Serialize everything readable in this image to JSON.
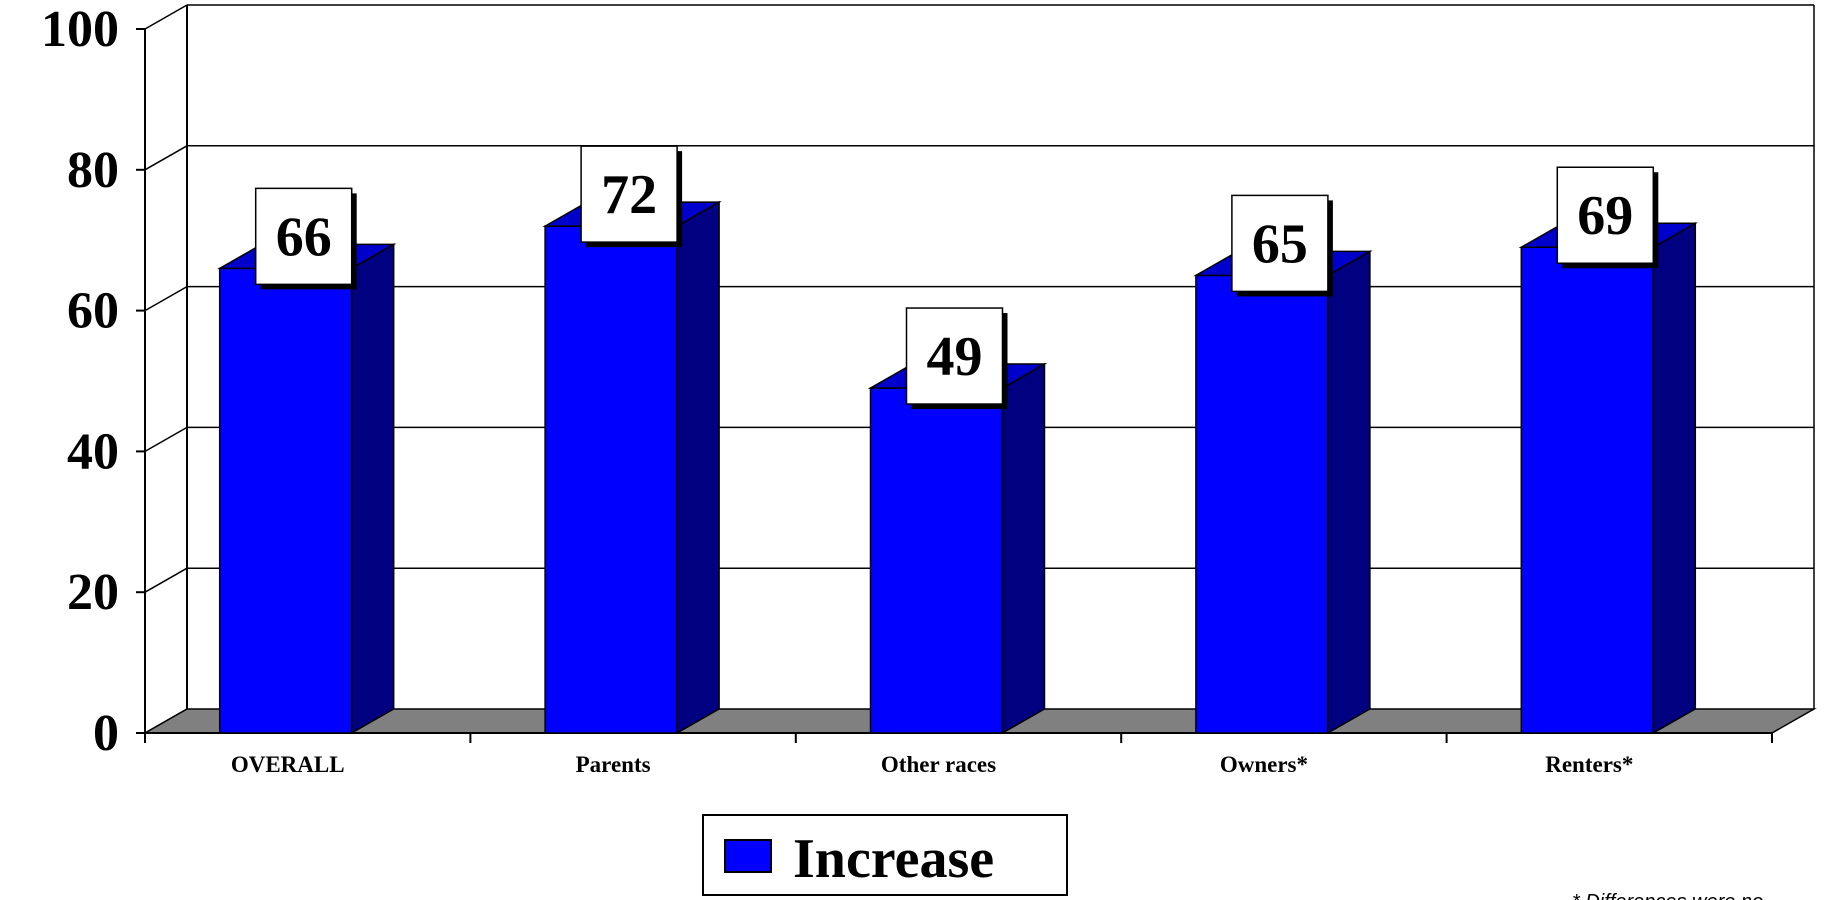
{
  "chart_data": {
    "type": "bar",
    "title": "",
    "xlabel": "",
    "ylabel": "",
    "categories": [
      "OVERALL",
      "Parents",
      "Other races",
      "Owners*",
      "Renters*"
    ],
    "series": [
      {
        "name": "Increase",
        "values": [
          66,
          72,
          49,
          65,
          69
        ]
      }
    ],
    "data_labels": [
      "66",
      "72",
      "49",
      "65",
      "69"
    ],
    "y_ticks": [
      "0",
      "20",
      "40",
      "60",
      "80",
      "100"
    ],
    "ylim": [
      0,
      100
    ],
    "grid": true,
    "legend_position": "bottom",
    "style": "3d",
    "colors": {
      "bar_front": "#0000ff",
      "bar_side": "#000080",
      "bar_top": "#0000cc",
      "floor": "#808080"
    }
  },
  "legend": {
    "label": "Increase"
  },
  "footnote": {
    "text": "* Differences were no"
  }
}
